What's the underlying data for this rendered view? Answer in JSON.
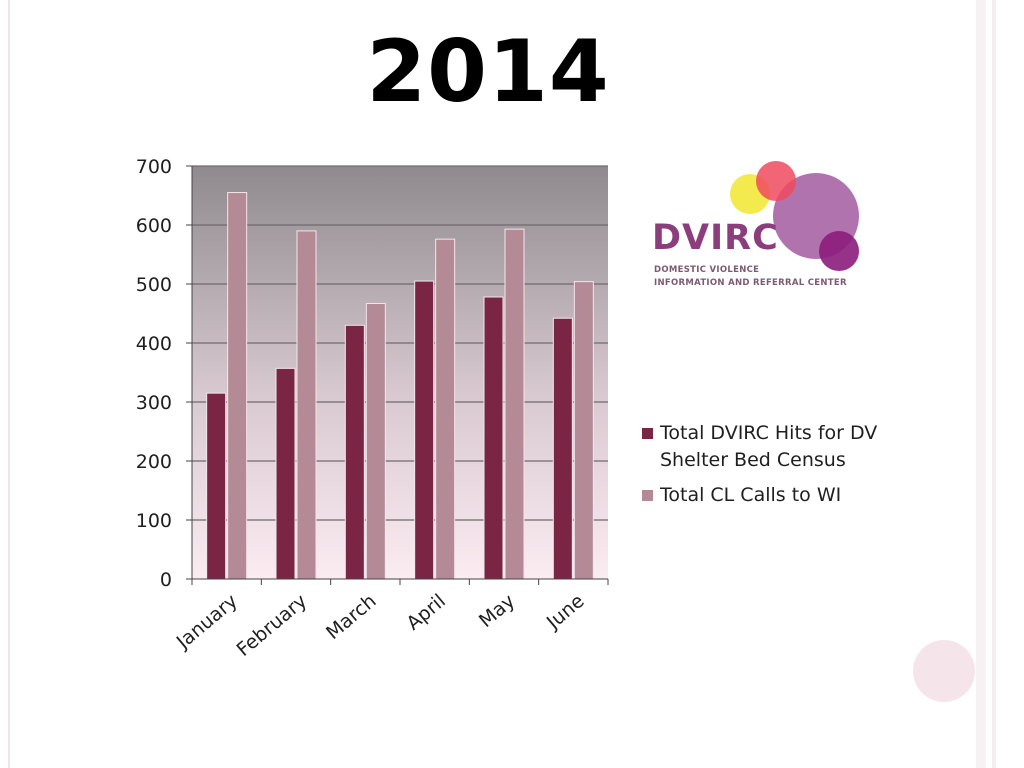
{
  "slide": {
    "title": "2014"
  },
  "logo": {
    "name": "DVIRC",
    "subtitle_line1": "DOMESTIC VIOLENCE",
    "subtitle_line2": "INFORMATION AND REFERRAL CENTER",
    "colors": {
      "text": "#8b3d7c",
      "yellow": "#f2e83a",
      "red": "#ee4a5e",
      "purple": "#a35ba0",
      "magenta": "#8c1c7c"
    }
  },
  "chart_data": {
    "type": "bar",
    "title": "",
    "xlabel": "",
    "ylabel": "",
    "categories": [
      "January",
      "February",
      "March",
      "April",
      "May",
      "June"
    ],
    "series": [
      {
        "name": "Total DVIRC Hits for DV Shelter Bed Census",
        "values": [
          315,
          357,
          430,
          505,
          478,
          442
        ],
        "color": "#7b2545"
      },
      {
        "name": "Total CL Calls to WI",
        "values": [
          655,
          590,
          467,
          576,
          593,
          504
        ],
        "color": "#b48a97"
      }
    ],
    "ylim": [
      0,
      700
    ],
    "yticks": [
      "0",
      "100",
      "200",
      "300",
      "400",
      "500",
      "600",
      "700"
    ],
    "grid": true,
    "legend_position": "right",
    "plot_background": "gradient gray to pink"
  }
}
